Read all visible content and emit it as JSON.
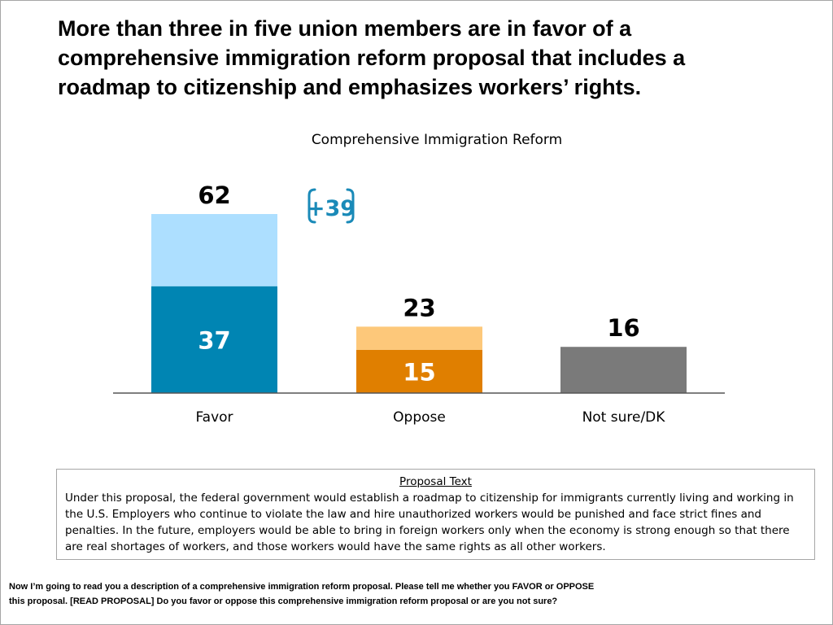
{
  "headline": "More than three in five union members are in favor of a comprehensive immigration reform proposal that includes a roadmap to citizenship and emphasizes workers’ rights.",
  "chart_data": {
    "type": "bar",
    "title": "Comprehensive Immigration Reform",
    "categories": [
      "Favor",
      "Oppose",
      "Not sure/DK"
    ],
    "values": [
      62,
      23,
      16
    ],
    "inner_values": [
      37,
      15,
      null
    ],
    "series": [
      {
        "name": "",
        "values": [
          37,
          15,
          16
        ]
      },
      {
        "name": "",
        "values": [
          25,
          8,
          0
        ]
      }
    ],
    "colors": {
      "favor_strong": "#0085b3",
      "favor_light": "#addfff",
      "oppose_strong": "#e07f00",
      "oppose_light": "#fdc87a",
      "not_sure": "#7a7a7a",
      "net_badge": "#1a8ab8"
    },
    "net_label": "+39",
    "ylim": [
      0,
      62
    ],
    "grid": false,
    "legend": "none",
    "xlabel": "",
    "ylabel": ""
  },
  "proposal": {
    "title": "Proposal Text",
    "body": "Under this proposal, the federal government would establish a roadmap to citizenship for immigrants currently living and working in the U.S.  Employers who continue to violate the law and hire unauthorized workers would be punished and face strict fines and penalties. In the future, employers would be able to bring in foreign workers only when the economy is strong enough so that there are real shortages of workers, and those workers would have the same rights as all other workers."
  },
  "question": "Now I’m going to read you a description of a comprehensive immigration reform proposal. Please tell me whether you FAVOR or OPPOSE this proposal. [READ PROPOSAL] Do you favor or oppose this comprehensive immigration reform proposal or are you not sure?"
}
